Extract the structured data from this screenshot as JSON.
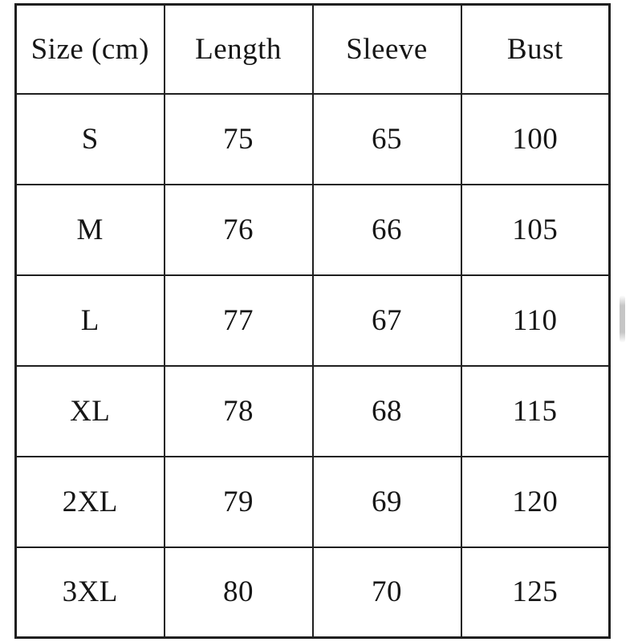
{
  "chart_data": {
    "type": "table",
    "columns": [
      "Size (cm)",
      "Length",
      "Sleeve",
      "Bust"
    ],
    "rows": [
      [
        "S",
        "75",
        "65",
        "100"
      ],
      [
        "M",
        "76",
        "66",
        "105"
      ],
      [
        "L",
        "77",
        "67",
        "110"
      ],
      [
        "XL",
        "78",
        "68",
        "115"
      ],
      [
        "2XL",
        "79",
        "69",
        "120"
      ],
      [
        "3XL",
        "80",
        "70",
        "125"
      ]
    ]
  },
  "colors": {
    "border": "#1f1f1f",
    "text": "#161616",
    "background": "#ffffff",
    "scrollbar": "#c6c6c6"
  }
}
